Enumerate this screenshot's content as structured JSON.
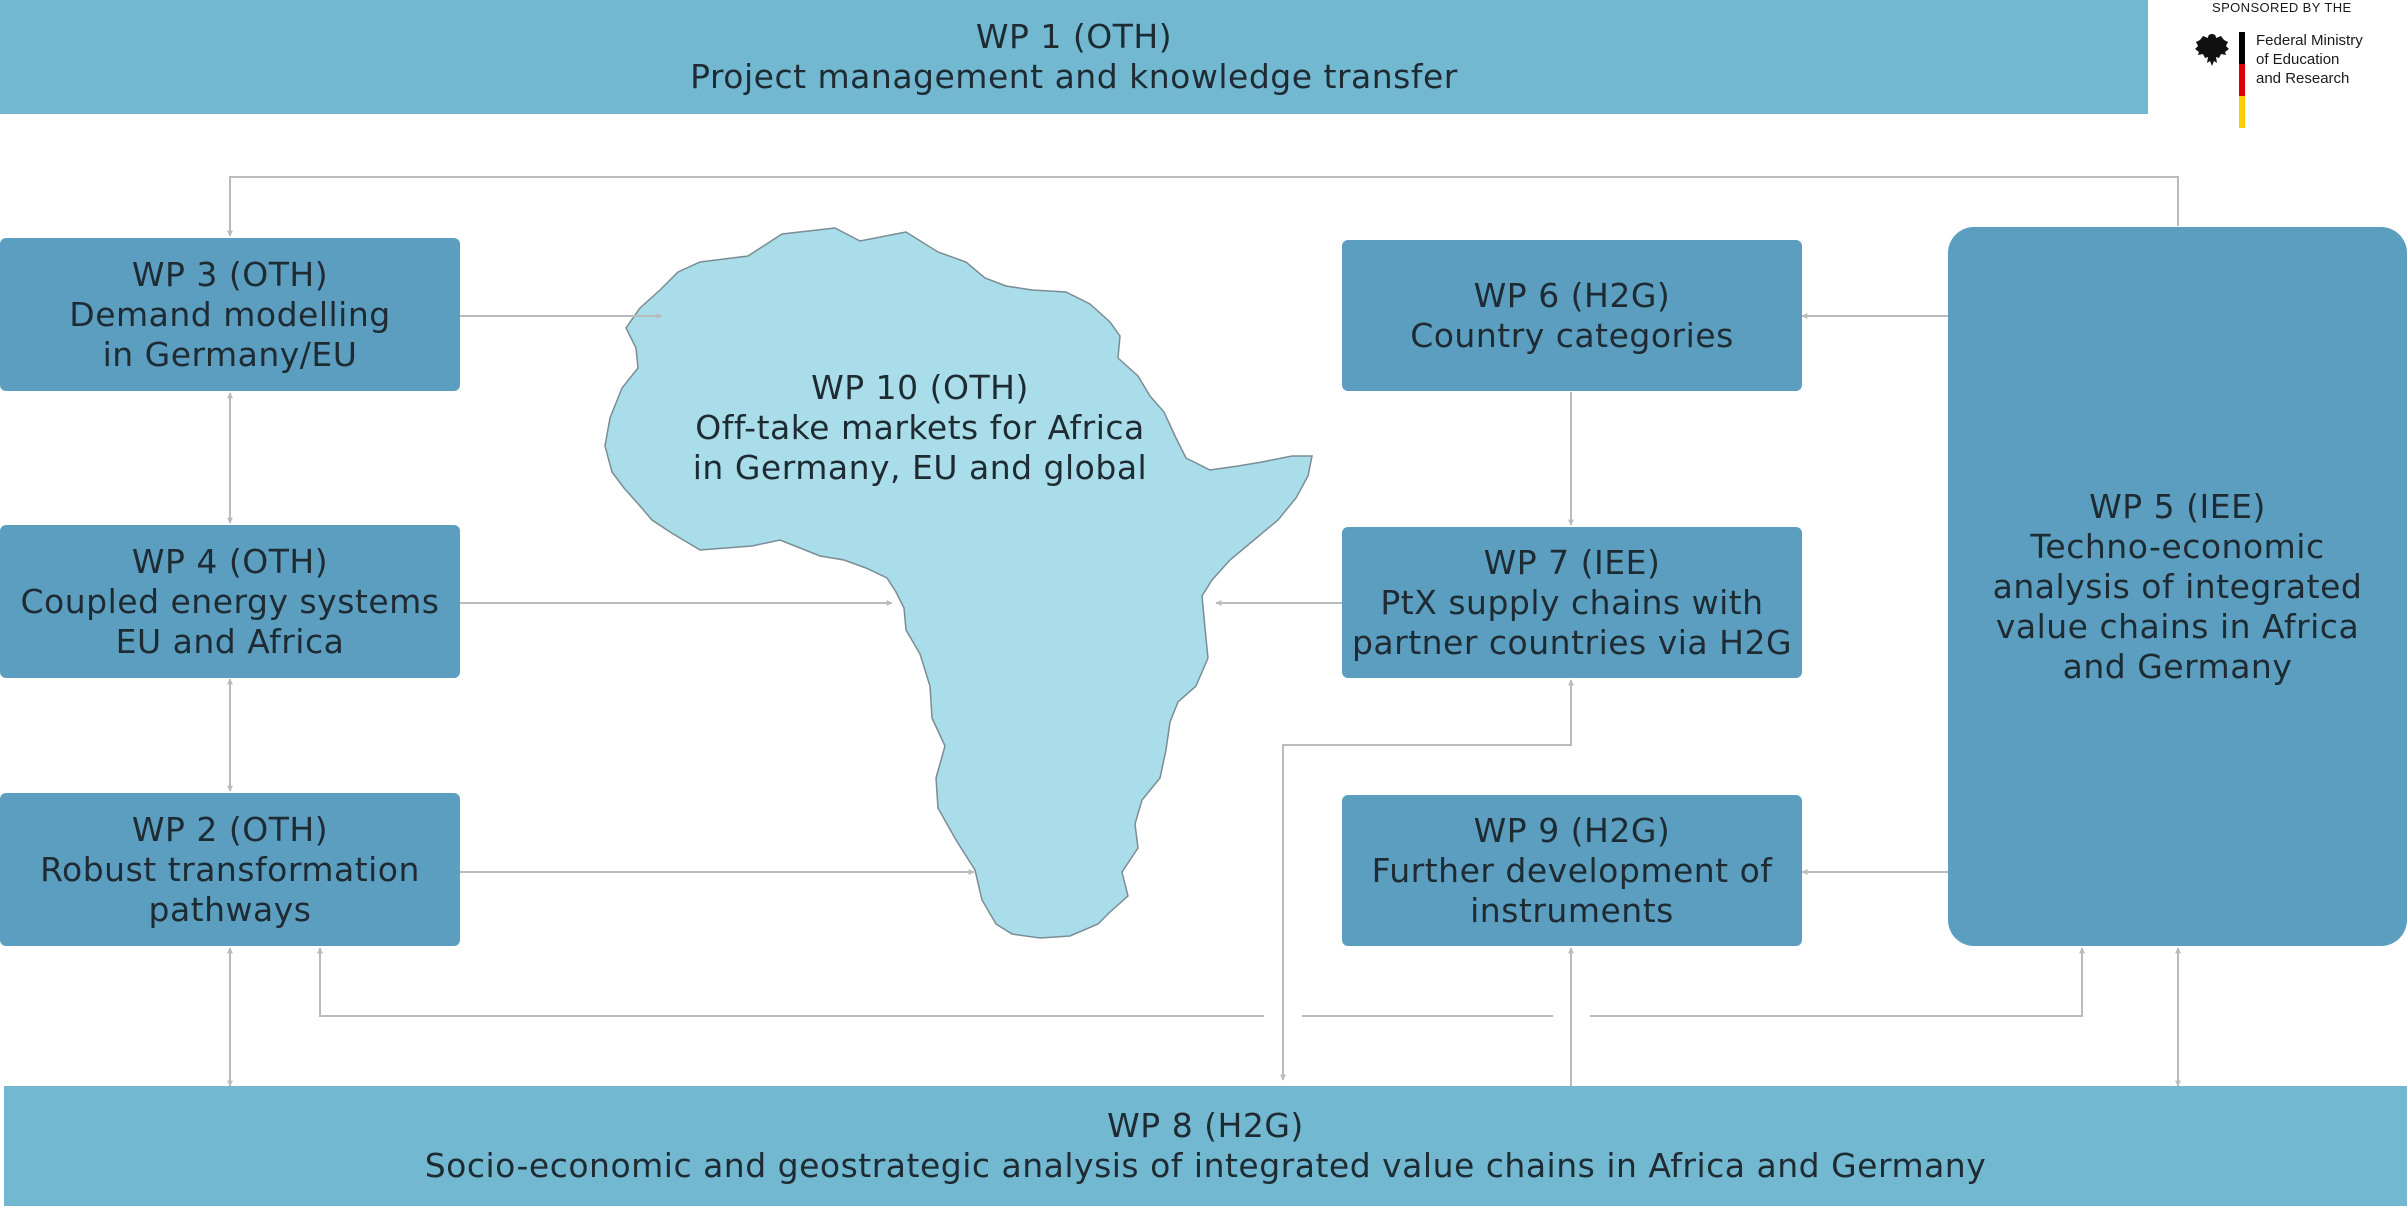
{
  "wp1": {
    "title": "WP 1 (OTH)",
    "line1": "Project management and knowledge transfer"
  },
  "wp3": {
    "title": "WP 3 (OTH)",
    "line1": "Demand modelling",
    "line2": "in Germany/EU"
  },
  "wp4": {
    "title": "WP 4 (OTH)",
    "line1": "Coupled energy systems",
    "line2": "EU and Africa"
  },
  "wp2": {
    "title": "WP 2 (OTH)",
    "line1": "Robust transformation",
    "line2": "pathways"
  },
  "wp10": {
    "title": "WP 10 (OTH)",
    "line1": "Off-take markets for Africa",
    "line2": "in Germany, EU and global"
  },
  "wp6": {
    "title": "WP 6 (H2G)",
    "line1": "Country categories"
  },
  "wp7": {
    "title": "WP 7 (IEE)",
    "line1": "PtX supply chains with",
    "line2": "partner countries via H2G"
  },
  "wp9": {
    "title": "WP 9 (H2G)",
    "line1": "Further development of",
    "line2": "instruments"
  },
  "wp5": {
    "title": "WP 5 (IEE)",
    "line1": "Techno-economic",
    "line2": "analysis of integrated",
    "line3": "value chains in Africa",
    "line4": "and Germany"
  },
  "wp8": {
    "title": "WP 8 (H2G)",
    "line1": "Socio-economic and geostrategic analysis of integrated value chains in Africa and Germany"
  },
  "sponsor": {
    "label": "SPONSORED BY THE",
    "line1": "Federal Ministry",
    "line2": "of Education",
    "line3": "and Research"
  },
  "colors": {
    "band": "#72b8d0",
    "box": "#5b9ec0",
    "africa": "#a9dde9",
    "connector": "#b8bcbf",
    "flag": [
      "#000000",
      "#dd0000",
      "#ffce00"
    ]
  },
  "icons": {
    "africa": "africa-map-icon",
    "sponsor": "federal-eagle-icon"
  }
}
